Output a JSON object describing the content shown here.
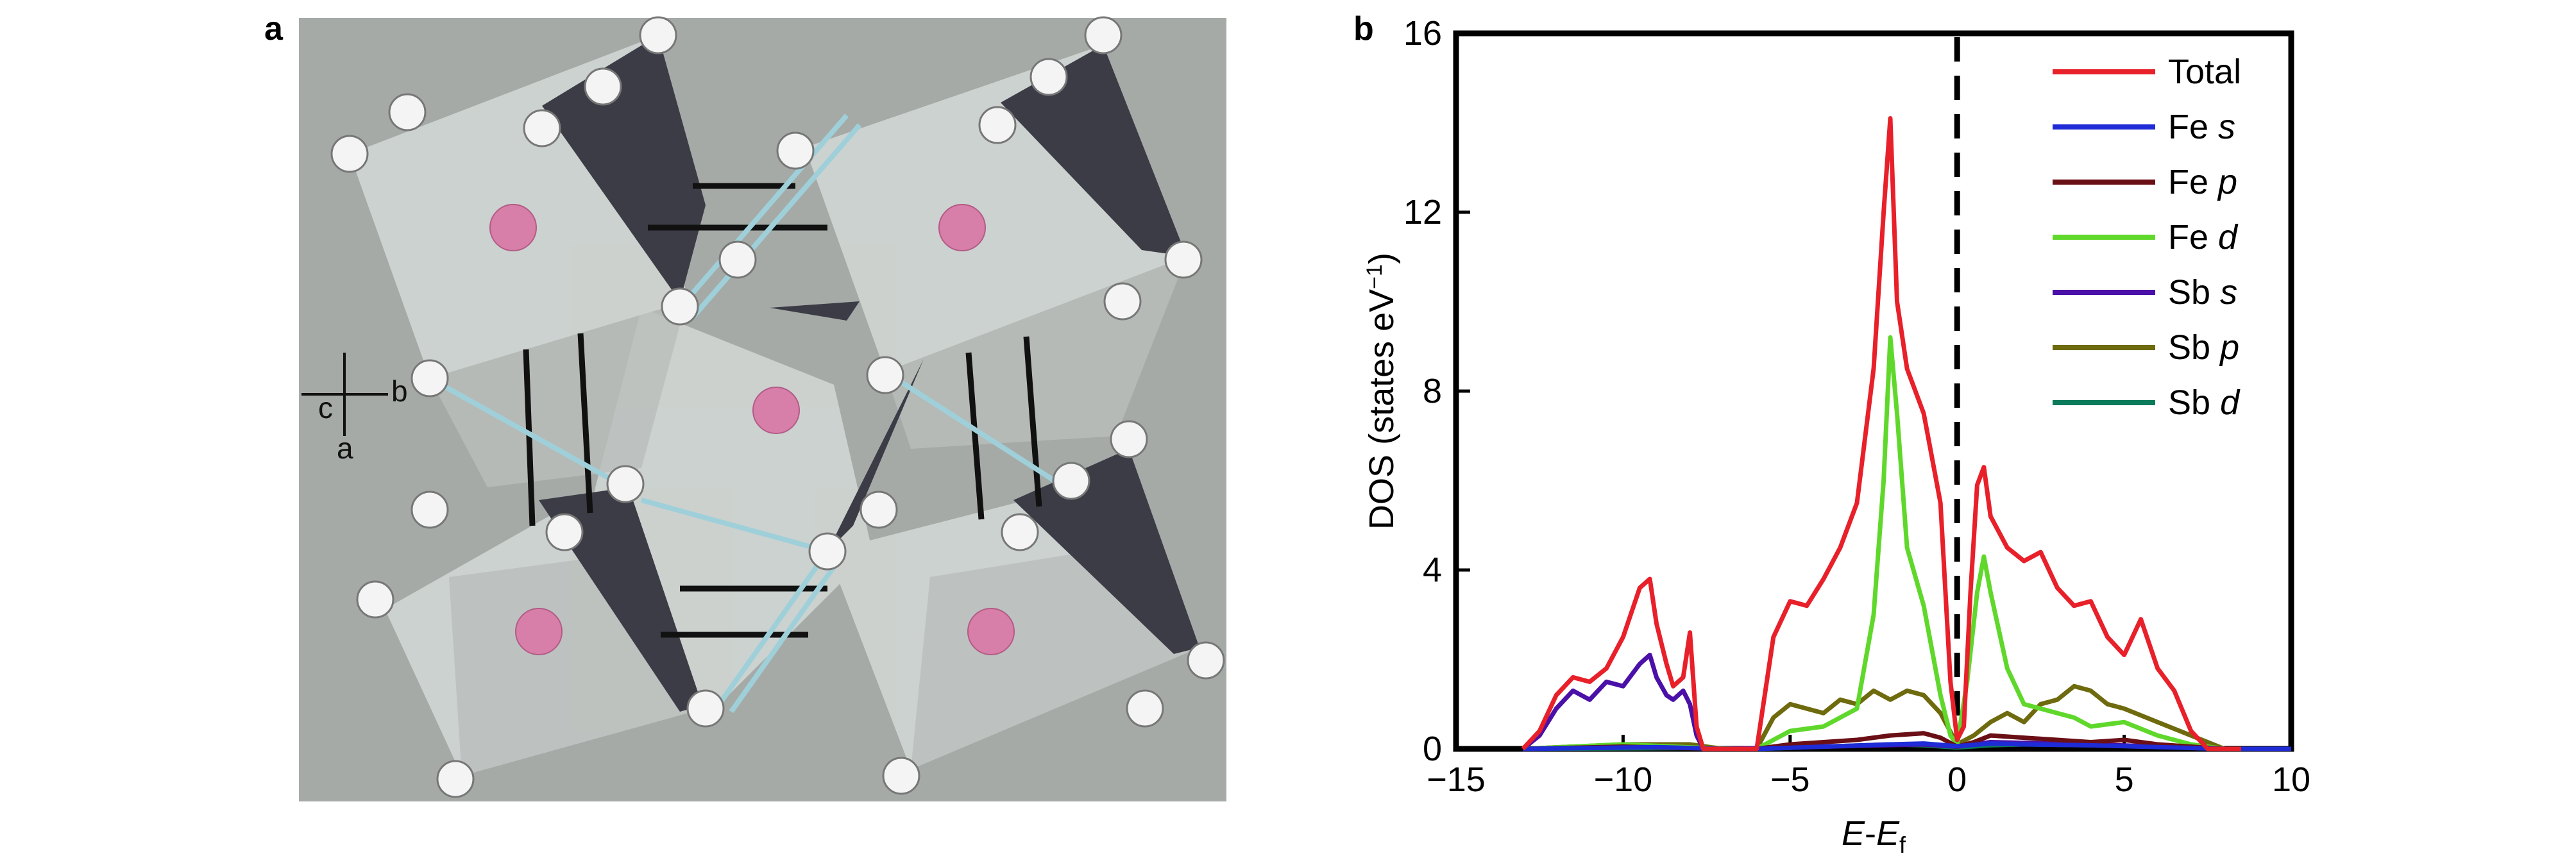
{
  "panel_a": {
    "label": "a",
    "axes_labels": {
      "c": "c",
      "b": "b",
      "a": "a"
    },
    "colors": {
      "background": "#a5aaa7",
      "dark_face": "#3c3c46",
      "light_face": "#dadfdc",
      "atom": "#f4f4f4",
      "fe_atom": "#d77fa9",
      "bond": "#9fd0da"
    }
  },
  "panel_b": {
    "label": "b"
  },
  "chart_data": {
    "type": "line",
    "title": "",
    "xlabel_main": "E",
    "xlabel_sep": "-",
    "xlabel_sub_base": "E",
    "xlabel_subscript": "f",
    "ylabel_main": "DOS (states eV",
    "ylabel_sup": "−1",
    "ylabel_close": ")",
    "xlim": [
      -15,
      10
    ],
    "ylim": [
      0,
      16
    ],
    "xticks": [
      -15,
      -10,
      -5,
      0,
      5,
      10
    ],
    "xtick_labels": [
      "−15",
      "−10",
      "−5",
      "0",
      "5",
      "10"
    ],
    "yticks": [
      0,
      4,
      8,
      12,
      16
    ],
    "ytick_labels": [
      "0",
      "4",
      "8",
      "12",
      "16"
    ],
    "fermi_level": 0,
    "legend_position": "top-right",
    "series": [
      {
        "name": "Total",
        "name_main": "Total",
        "name_italic": "",
        "color": "#e8202a",
        "x": [
          -13,
          -12.5,
          -12,
          -11.5,
          -11,
          -10.5,
          -10,
          -9.5,
          -9.2,
          -9,
          -8.7,
          -8.5,
          -8.2,
          -8,
          -7.8,
          -7.6,
          -7.4,
          -7.2,
          -7,
          -6.5,
          -6,
          -5.5,
          -5,
          -4.5,
          -4,
          -3.5,
          -3,
          -2.5,
          -2.2,
          -2,
          -1.8,
          -1.5,
          -1,
          -0.5,
          -0.2,
          0,
          0.2,
          0.4,
          0.6,
          0.8,
          1,
          1.5,
          2,
          2.5,
          3,
          3.5,
          4,
          4.5,
          5,
          5.5,
          6,
          6.5,
          7,
          7.5,
          8,
          8.5
        ],
        "y": [
          0,
          0.4,
          1.2,
          1.6,
          1.5,
          1.8,
          2.5,
          3.6,
          3.8,
          2.8,
          1.9,
          1.4,
          1.6,
          2.6,
          0.5,
          0,
          0,
          0,
          0,
          0,
          0,
          2.5,
          3.3,
          3.2,
          3.8,
          4.5,
          5.5,
          8.5,
          12,
          14.1,
          10,
          8.5,
          7.5,
          5.5,
          1.5,
          0.2,
          0.5,
          3.5,
          5.9,
          6.3,
          5.2,
          4.5,
          4.2,
          4.4,
          3.6,
          3.2,
          3.3,
          2.5,
          2.1,
          2.9,
          1.8,
          1.3,
          0.4,
          0,
          0,
          0
        ]
      },
      {
        "name": "Fe s",
        "name_main": "Fe ",
        "name_italic": "s",
        "color": "#1f2bd6",
        "x": [
          -13,
          -11,
          -9,
          -7,
          -6,
          -4,
          -2,
          -1,
          0,
          1,
          2,
          4,
          6,
          8,
          10
        ],
        "y": [
          0,
          0.02,
          0.04,
          0,
          0,
          0.05,
          0.1,
          0.12,
          0.06,
          0.12,
          0.1,
          0.08,
          0.04,
          0,
          0
        ]
      },
      {
        "name": "Fe p",
        "name_main": "Fe ",
        "name_italic": "p",
        "color": "#6b0f16",
        "x": [
          -13,
          -10,
          -7,
          -6,
          -5,
          -3,
          -2,
          -1,
          -0.5,
          0,
          0.5,
          1,
          2,
          3,
          4,
          5,
          6,
          7,
          8,
          10
        ],
        "y": [
          0,
          0.05,
          0,
          0,
          0.1,
          0.2,
          0.3,
          0.35,
          0.25,
          0.05,
          0.15,
          0.3,
          0.25,
          0.2,
          0.15,
          0.2,
          0.1,
          0.05,
          0,
          0
        ]
      },
      {
        "name": "Fe d",
        "name_main": "Fe ",
        "name_italic": "d",
        "color": "#5fd82b",
        "x": [
          -13,
          -10,
          -7,
          -6,
          -5,
          -4,
          -3,
          -2.5,
          -2.2,
          -2,
          -1.8,
          -1.5,
          -1,
          -0.5,
          -0.2,
          0,
          0.3,
          0.6,
          0.8,
          1,
          1.5,
          2,
          2.5,
          3,
          3.5,
          4,
          5,
          6,
          7,
          8,
          10
        ],
        "y": [
          0,
          0.1,
          0,
          0,
          0.4,
          0.5,
          0.9,
          3,
          6,
          9.2,
          7.5,
          4.5,
          3.2,
          1.2,
          0.3,
          0.1,
          1.5,
          3.5,
          4.3,
          3.5,
          1.8,
          1,
          0.9,
          0.8,
          0.7,
          0.5,
          0.6,
          0.3,
          0.1,
          0,
          0
        ]
      },
      {
        "name": "Sb s",
        "name_main": "Sb ",
        "name_italic": "s",
        "color": "#4a10a8",
        "x": [
          -13,
          -12.5,
          -12,
          -11.5,
          -11,
          -10.5,
          -10,
          -9.5,
          -9.2,
          -9,
          -8.7,
          -8.5,
          -8.2,
          -8,
          -7.8,
          -7.6,
          -7,
          -4,
          -1,
          0,
          1,
          4,
          8,
          10
        ],
        "y": [
          0,
          0.3,
          0.9,
          1.3,
          1.1,
          1.5,
          1.4,
          1.9,
          2.1,
          1.6,
          1.2,
          1.1,
          1.3,
          1.0,
          0.3,
          0,
          0,
          0.05,
          0.1,
          0.05,
          0.15,
          0.1,
          0,
          0
        ]
      },
      {
        "name": "Sb p",
        "name_main": "Sb ",
        "name_italic": "p",
        "color": "#6e6a0e",
        "x": [
          -13,
          -10,
          -8,
          -7,
          -6,
          -5.5,
          -5,
          -4.5,
          -4,
          -3.5,
          -3,
          -2.5,
          -2,
          -1.5,
          -1,
          -0.5,
          0,
          0.5,
          1,
          1.5,
          2,
          2.5,
          3,
          3.5,
          4,
          4.5,
          5,
          6,
          7,
          8,
          10
        ],
        "y": [
          0,
          0.1,
          0.1,
          0,
          0,
          0.7,
          1.0,
          0.9,
          0.8,
          1.1,
          1.0,
          1.3,
          1.1,
          1.3,
          1.2,
          0.8,
          0.1,
          0.3,
          0.6,
          0.8,
          0.6,
          1.0,
          1.1,
          1.4,
          1.3,
          1.0,
          0.9,
          0.6,
          0.3,
          0,
          0
        ]
      },
      {
        "name": "Sb d",
        "name_main": "Sb ",
        "name_italic": "d",
        "color": "#0a7a5a",
        "x": [
          -13,
          -8,
          -6,
          -4,
          -2,
          -1,
          0,
          1,
          2,
          4,
          6,
          8,
          10
        ],
        "y": [
          0,
          0.02,
          0,
          0.05,
          0.1,
          0.08,
          0.03,
          0.08,
          0.1,
          0.08,
          0.05,
          0,
          0
        ]
      }
    ]
  }
}
